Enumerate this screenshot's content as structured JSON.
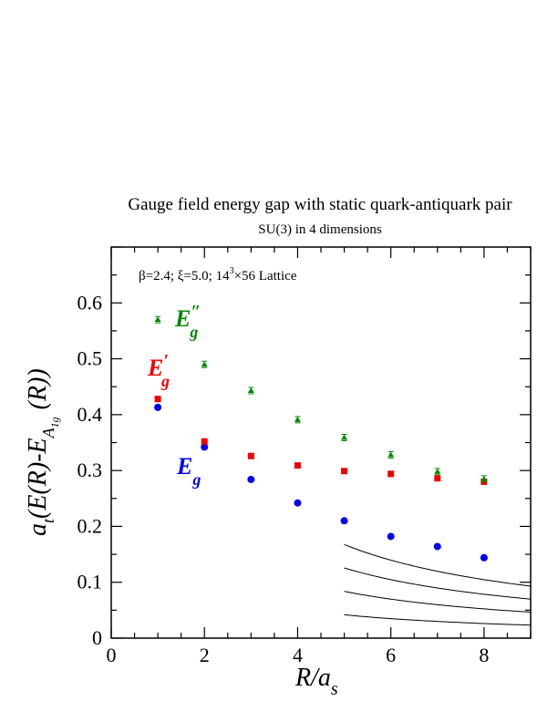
{
  "chart_data": {
    "type": "scatter",
    "title": "Gauge field energy gap with static quark-antiquark pair",
    "subtitle": "SU(3) in 4 dimensions",
    "annotation": {
      "prefix": "β=2.4;  ξ=5.0; 14",
      "sup": "3",
      "suffix": "×56 Lattice"
    },
    "xlabel": {
      "main": "R/a",
      "sub": "s"
    },
    "ylabel": {
      "a": "a",
      "a_sub": "t",
      "body": "(E(R)-E",
      "e_sub": "A",
      "e_subsub": "1g",
      "tail": "(R))"
    },
    "xlim": [
      0,
      9
    ],
    "ylim": [
      0,
      0.7
    ],
    "x_ticks": [
      0,
      2,
      4,
      6,
      8
    ],
    "x_tick_labels": [
      "0",
      "2",
      "4",
      "6",
      "8"
    ],
    "y_ticks": [
      0,
      0.1,
      0.2,
      0.3,
      0.4,
      0.5,
      0.6
    ],
    "y_tick_labels": [
      "0",
      "0.1",
      "0.2",
      "0.3",
      "0.4",
      "0.5",
      "0.6"
    ],
    "series": [
      {
        "name": "E_g",
        "label": {
          "main": "E",
          "sub": "g",
          "prime": ""
        },
        "color": "#0000ee",
        "marker": "circle",
        "x": [
          1,
          2,
          3,
          4,
          5,
          6,
          7,
          8
        ],
        "y": [
          0.413,
          0.342,
          0.284,
          0.242,
          0.21,
          0.182,
          0.164,
          0.144
        ]
      },
      {
        "name": "E'_g",
        "label": {
          "main": "E",
          "sub": "g",
          "prime": "′"
        },
        "color": "#ee0000",
        "marker": "square",
        "x": [
          1,
          2,
          3,
          4,
          5,
          6,
          7,
          8
        ],
        "y": [
          0.428,
          0.352,
          0.326,
          0.309,
          0.299,
          0.294,
          0.286,
          0.28
        ]
      },
      {
        "name": "E''_g",
        "label": {
          "main": "E",
          "sub": "g",
          "prime": "″"
        },
        "color": "#008800",
        "marker": "triangle",
        "x": [
          1,
          2,
          3,
          4,
          5,
          6,
          7,
          8
        ],
        "y": [
          0.57,
          0.49,
          0.443,
          0.391,
          0.359,
          0.328,
          0.298,
          0.285
        ]
      }
    ],
    "curves": {
      "form": "n·π / R",
      "coefficient": 0.2094,
      "n": [
        1,
        2,
        3,
        4
      ],
      "x_range": [
        5,
        9
      ],
      "color": "#000000"
    }
  }
}
